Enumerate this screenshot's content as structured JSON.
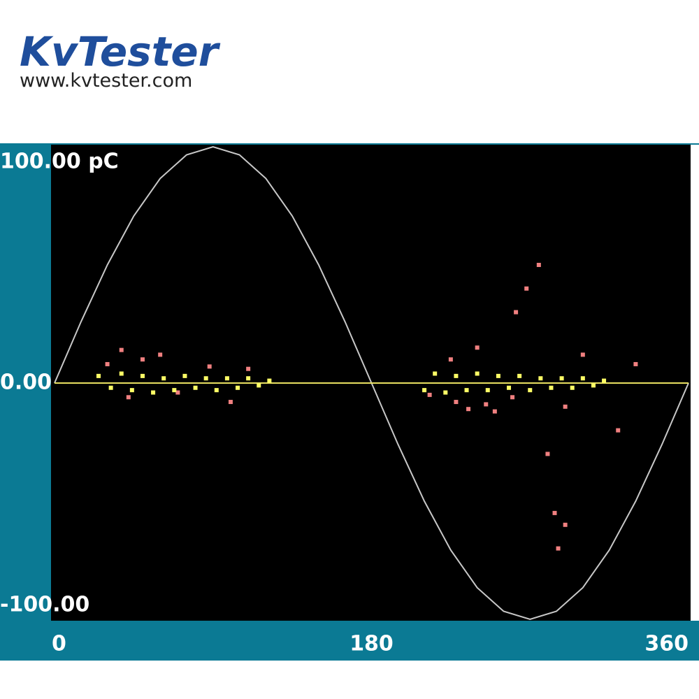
{
  "header": {
    "brand": "KvTester",
    "url": "www.kvtester.com"
  },
  "chart_data": {
    "type": "scatter",
    "xlim": [
      0,
      360
    ],
    "ylim": [
      -100,
      100
    ],
    "xticks": [
      0,
      180,
      360
    ],
    "yticks": [
      {
        "value": 100,
        "label": "100.00 pC"
      },
      {
        "value": 0,
        "label": "0.00"
      },
      {
        "value": -100,
        "label": "-100.00"
      }
    ],
    "series": [
      {
        "style": "line",
        "color": "#c8c8c8",
        "x": [
          0,
          15,
          30,
          45,
          60,
          75,
          90,
          105,
          120,
          135,
          150,
          165,
          180,
          195,
          210,
          225,
          240,
          255,
          270,
          285,
          300,
          315,
          330,
          345,
          360
        ],
        "values": [
          0,
          25.88,
          50,
          70.71,
          86.6,
          96.59,
          100,
          96.59,
          86.6,
          70.71,
          50,
          25.88,
          0,
          -25.88,
          -50,
          -70.71,
          -86.6,
          -96.59,
          -100,
          -96.59,
          -86.6,
          -70.71,
          -50,
          -25.88,
          0
        ]
      },
      {
        "style": "line",
        "color": "#e8e060",
        "x": [
          0,
          360
        ],
        "values": [
          0,
          0
        ]
      },
      {
        "style": "points",
        "color": "#f08080",
        "x": [
          30,
          38,
          42,
          50,
          60,
          70,
          88,
          100,
          110,
          213,
          225,
          240,
          250,
          262,
          268,
          275,
          280,
          284,
          286,
          290,
          300,
          320,
          330,
          260,
          245,
          235,
          228,
          290
        ],
        "values": [
          8,
          14,
          -6,
          10,
          12,
          -4,
          7,
          -8,
          6,
          -5,
          10,
          15,
          -12,
          30,
          40,
          50,
          -30,
          -55,
          -70,
          -60,
          12,
          -20,
          8,
          -6,
          -9,
          -11,
          -8,
          -10
        ]
      },
      {
        "style": "points",
        "color": "#ffff66",
        "x": [
          25,
          32,
          38,
          44,
          50,
          56,
          62,
          68,
          74,
          80,
          86,
          92,
          98,
          104,
          110,
          116,
          122,
          210,
          216,
          222,
          228,
          234,
          240,
          246,
          252,
          258,
          264,
          270,
          276,
          282,
          288,
          294,
          300,
          306,
          312
        ],
        "values": [
          3,
          -2,
          4,
          -3,
          3,
          -4,
          2,
          -3,
          3,
          -2,
          2,
          -3,
          2,
          -2,
          2,
          -1,
          1,
          -3,
          4,
          -4,
          3,
          -3,
          4,
          -3,
          3,
          -2,
          3,
          -3,
          2,
          -2,
          2,
          -2,
          2,
          -1,
          1
        ]
      }
    ]
  }
}
